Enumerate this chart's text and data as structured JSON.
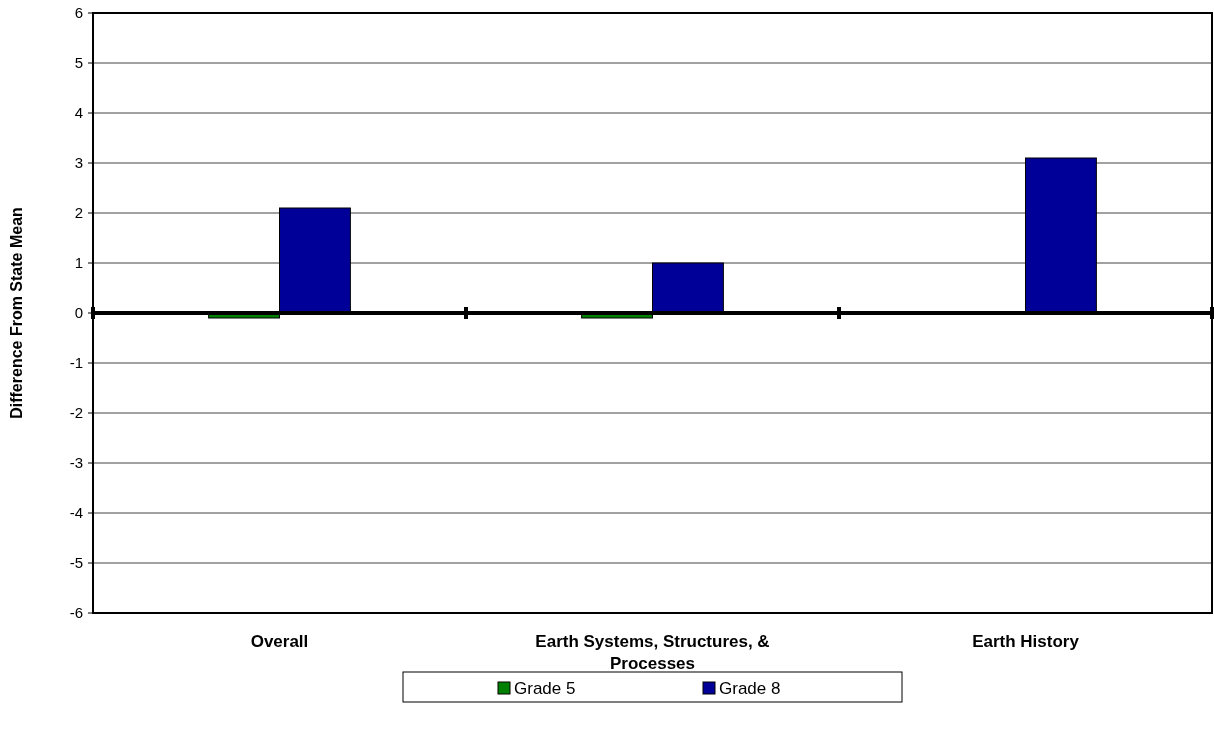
{
  "chart_data": {
    "type": "bar",
    "ylabel": "Difference From State Mean",
    "categories": [
      "Overall",
      "Earth Systems, Structures, & Processes",
      "Earth History"
    ],
    "series": [
      {
        "name": "Grade 5",
        "color": "#008000",
        "values": [
          -0.1,
          -0.1,
          null
        ]
      },
      {
        "name": "Grade 8",
        "color": "#000099",
        "values": [
          2.1,
          1.0,
          3.1
        ]
      }
    ],
    "ylim": [
      -6,
      6
    ],
    "yticks": [
      -6,
      -5,
      -4,
      -3,
      -2,
      -1,
      0,
      1,
      2,
      3,
      4,
      5,
      6
    ],
    "grid": "y",
    "legend": "bottom"
  }
}
